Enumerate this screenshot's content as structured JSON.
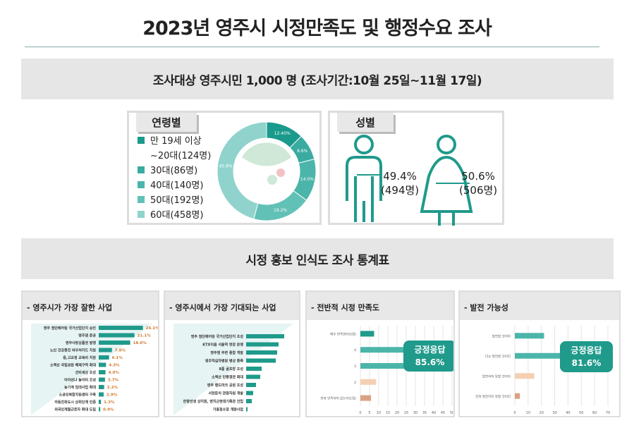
{
  "title": "2023년 영주시 시정만족도 및 행정수요 조사",
  "survey_info": "조사대상 영주시민 1,000 명 (조사기간:10월 25일~11월 17일)",
  "age": {
    "tag": "연령별",
    "legend": [
      "만 19세 이상",
      "~20대(124명)",
      "30대(86명)",
      "40대(140명)",
      "50대(192명)",
      "60대(458명)"
    ],
    "chart_data": {
      "type": "pie",
      "values": [
        12.4,
        8.6,
        14.0,
        19.2,
        45.8
      ],
      "labels": [
        "12.40%",
        "8.6%",
        "14.0%",
        "19.2%",
        "45.8%"
      ],
      "colors": [
        "#1a9a8c",
        "#3aaba0",
        "#4cb5aa",
        "#62c1b6",
        "#8fd3cc"
      ]
    }
  },
  "gender": {
    "tag": "성별",
    "male_pct": "49.4%",
    "male_count": "(494명)",
    "female_pct": "50.6%",
    "female_count": "(506명)"
  },
  "section_title": "시정 홍보 인식도 조사 통계표",
  "chart_data": [
    {
      "type": "bar",
      "title": "- 영주시가 가장 잘한 사업",
      "categories": [
        "영주 첨단베어링 국가산업단지 승인",
        "영주댐 준공",
        "영주사랑상품권 발행",
        "노인 건강증진 바우처카드 지원",
        "중,고교생 교복비 지원",
        "소백산 국립공원 해제구역 확대",
        "선비세상 조성",
        "어이선나 놀이터 조성",
        "농기계 임대사업 확대",
        "소공인복합지원센터 구축",
        "아동친화도시 상위단계 인증",
        "외국인계절근로자 확대 도입"
      ],
      "values": [
        26.1,
        21.1,
        18.6,
        7.8,
        6.1,
        4.3,
        4.0,
        3.7,
        3.2,
        2.9,
        1.3,
        0.9
      ],
      "labels": [
        "26.1%",
        "21.1%",
        "18.6%",
        "7.8%",
        "6.1%",
        "4.3%",
        "4.0%",
        "3.7%",
        "3.2%",
        "2.9%",
        "1.3%",
        "0.9%"
      ]
    },
    {
      "type": "bar",
      "title": "- 영주시에서 가장 기대되는 사업",
      "categories": [
        "영주 첨단베어링 국가산업단지 조성",
        "KTX이음 서울역 연장 운행",
        "영주댐 주변 종합 개발",
        "영주적십자병원 병상 증축",
        "8홀 골프장 조성",
        "소백산 단풍경관 확대",
        "영주 랜드마크 공원 조성",
        "서천둔치 관광자원 개발",
        "한향선생 상지원, 영지근현대기록관 건립",
        "가흥정수장 개량사업"
      ],
      "values": [
        27,
        23,
        22,
        21,
        11,
        10,
        7,
        5,
        4,
        1
      ]
    },
    {
      "type": "bar",
      "title": "- 전반적 시정 만족도",
      "categories": [
        "매우 만족한다(5점)",
        "4",
        "3",
        "2",
        "전혀 만족하지 않는다(1점)"
      ],
      "values": [
        7.5,
        42,
        36.1,
        8.6,
        5.8
      ],
      "xticks": [
        "0",
        "5",
        "10",
        "15",
        "20",
        "25",
        "30",
        "35",
        "40",
        "45",
        "50"
      ],
      "xlim": [
        0,
        50
      ],
      "callout_label": "긍정응답",
      "callout_value": "85.6%"
    },
    {
      "type": "bar",
      "title": "- 발전 가능성",
      "categories": [
        "발전할 것이다",
        "다소 발전할 것이다",
        "발전하지 못할 것이다",
        "전혀 발전하지 못할 것이다"
      ],
      "values": [
        22,
        59.6,
        14.6,
        3.8
      ],
      "xticks": [
        "0",
        "10",
        "20",
        "30",
        "40",
        "50",
        "60",
        "70"
      ],
      "xlim": [
        0,
        70
      ],
      "callout_label": "긍정응답",
      "callout_value": "81.6%"
    }
  ]
}
